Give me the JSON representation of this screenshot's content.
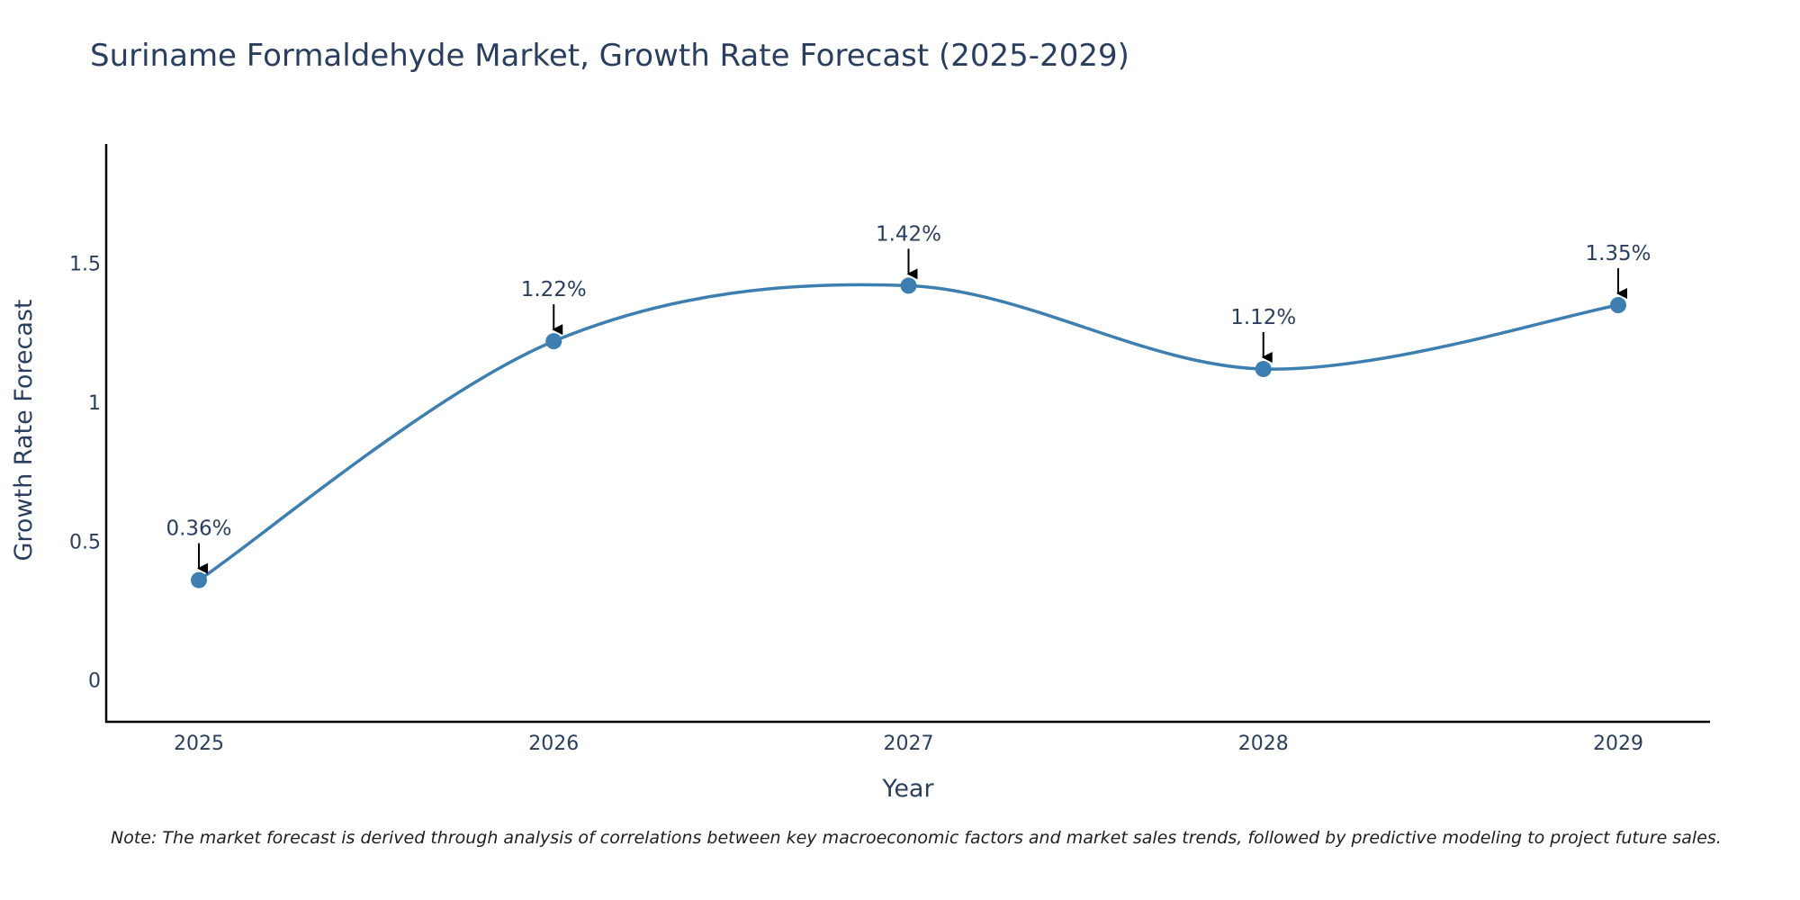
{
  "chart_data": {
    "type": "line",
    "title": "Suriname Formaldehyde Market, Growth Rate Forecast (2025-2029)",
    "xlabel": "Year",
    "ylabel": "Growth Rate Forecast",
    "categories": [
      "2025",
      "2026",
      "2027",
      "2028",
      "2029"
    ],
    "series": [
      {
        "name": "Growth Rate Forecast",
        "values": [
          0.36,
          1.22,
          1.42,
          1.12,
          1.35
        ],
        "labels": [
          "0.36%",
          "1.22%",
          "1.42%",
          "1.12%",
          "1.35%"
        ]
      }
    ],
    "ylim": [
      -0.15,
      1.93
    ],
    "yticks": [
      0,
      0.5,
      1,
      1.5
    ],
    "ytick_labels": [
      "0",
      "0.5",
      "1",
      "1.5"
    ],
    "grid": false,
    "line_shape": "spline",
    "color": "#3d7fb0",
    "note": "Note: The market forecast is derived through analysis of correlations between key macroeconomic factors and market sales trends, followed by predictive modeling to project future sales."
  }
}
